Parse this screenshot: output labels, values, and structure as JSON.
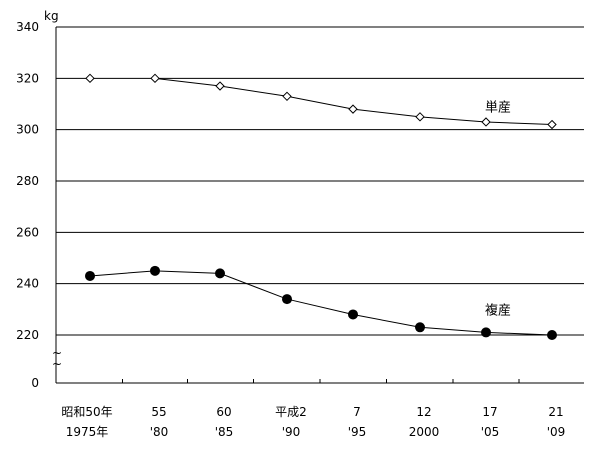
{
  "chart_data": {
    "type": "line",
    "y_unit": "kg",
    "ylim": [
      200,
      340
    ],
    "y_ticks": [
      {
        "value": 340,
        "label": "340"
      },
      {
        "value": 320,
        "label": "320"
      },
      {
        "value": 300,
        "label": "300"
      },
      {
        "value": 280,
        "label": "280"
      },
      {
        "value": 260,
        "label": "260"
      },
      {
        "value": 240,
        "label": "240"
      },
      {
        "value": 220,
        "label": "220"
      }
    ],
    "y_zero_label": "0",
    "y_break_marks": [
      "~",
      "~"
    ],
    "categories": [
      {
        "top": "昭和50年",
        "bottom": "1975年"
      },
      {
        "top": "55",
        "bottom": "'80"
      },
      {
        "top": "60",
        "bottom": "'85"
      },
      {
        "top": "平成2",
        "bottom": "'90"
      },
      {
        "top": "7",
        "bottom": "'95"
      },
      {
        "top": "12",
        "bottom": "2000"
      },
      {
        "top": "17",
        "bottom": "'05"
      },
      {
        "top": "21",
        "bottom": "'09"
      }
    ],
    "grid": "horizontal",
    "series": [
      {
        "name": "単産",
        "marker": "open-diamond",
        "values": [
          320,
          320,
          317,
          313,
          308,
          305,
          303,
          302
        ]
      },
      {
        "name": "複産",
        "marker": "filled-circle",
        "values": [
          243,
          245,
          244,
          234,
          228,
          223,
          221,
          220
        ]
      }
    ]
  }
}
